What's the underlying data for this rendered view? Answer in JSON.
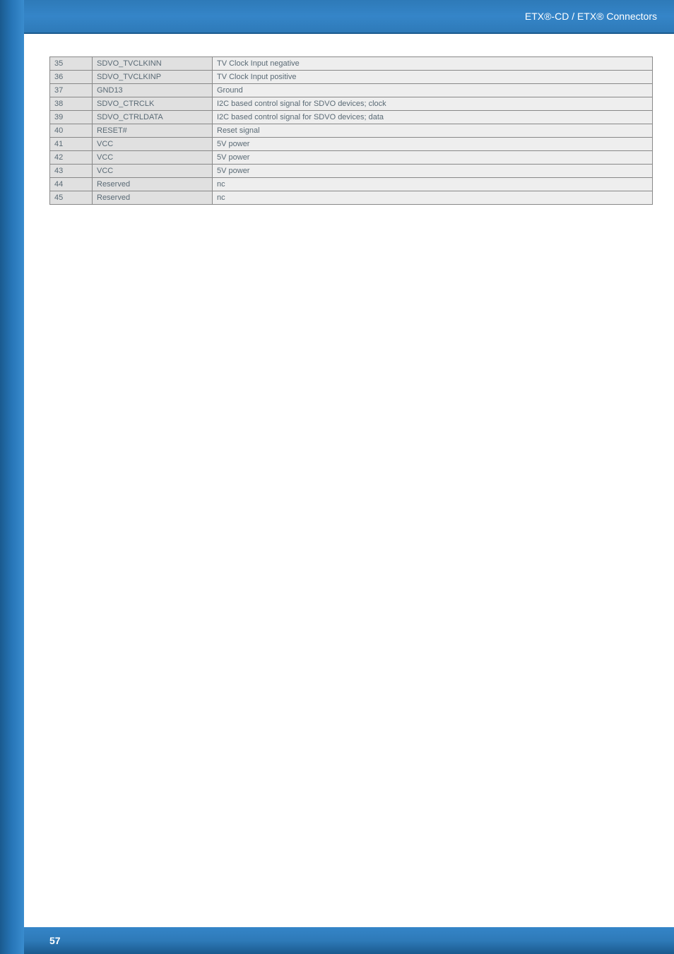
{
  "header": {
    "title": "ETX®-CD / ETX® Connectors"
  },
  "table": {
    "rows": [
      {
        "pin": "35",
        "signal": "SDVO_TVCLKINN",
        "desc": "TV Clock Input negative"
      },
      {
        "pin": "36",
        "signal": "SDVO_TVCLKINP",
        "desc": "TV Clock Input positive"
      },
      {
        "pin": "37",
        "signal": "GND13",
        "desc": "Ground"
      },
      {
        "pin": "38",
        "signal": "SDVO_CTRCLK",
        "desc": "I2C based control signal for SDVO devices; clock"
      },
      {
        "pin": "39",
        "signal": "SDVO_CTRLDATA",
        "desc": "I2C based control signal for SDVO devices; data"
      },
      {
        "pin": "40",
        "signal": "RESET#",
        "desc": "Reset signal"
      },
      {
        "pin": "41",
        "signal": "VCC",
        "desc": "5V power"
      },
      {
        "pin": "42",
        "signal": "VCC",
        "desc": "5V power"
      },
      {
        "pin": "43",
        "signal": "VCC",
        "desc": "5V power"
      },
      {
        "pin": "44",
        "signal": "Reserved",
        "desc": "nc"
      },
      {
        "pin": "45",
        "signal": "Reserved",
        "desc": "nc"
      }
    ]
  },
  "footer": {
    "page_number": "57"
  },
  "colors": {
    "header_bg": "#2e7ab8",
    "sidebar_bg": "#2776b8",
    "footer_bg": "#2e7ab8",
    "cell_header_bg": "#e0e0e0",
    "cell_body_bg": "#eeeeee",
    "text_color": "#5a6a75",
    "border_color": "#888888"
  }
}
